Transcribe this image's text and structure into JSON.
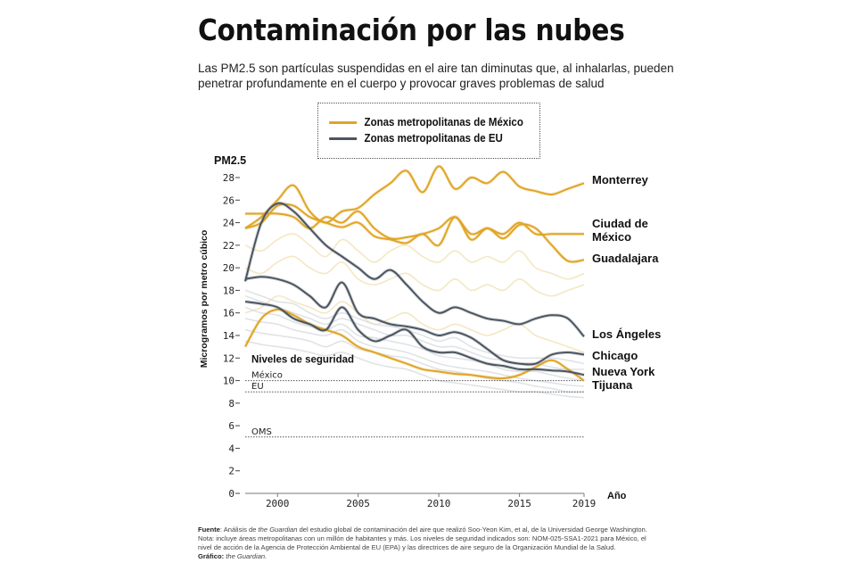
{
  "header": {
    "title": "Contaminación por las nubes",
    "subtitle": "Las PM2.5 son partículas suspendidas en el aire tan diminutas que, al inhalarlas, pueden penetrar profundamente en el cuerpo y provocar graves problemas de salud"
  },
  "colors": {
    "mexico": "#E0A526",
    "us": "#4B5560",
    "mexico_faint": "#F2DFB0",
    "us_faint": "#D5D9DE",
    "threshold": "#555555"
  },
  "chart_data": {
    "type": "line",
    "title": "Contaminación por las nubes",
    "ylabel": "Microgramos por metro cúbico",
    "ylabel_top": "PM2.5",
    "xlabel": "Año",
    "ylim": [
      0,
      28
    ],
    "xlim": [
      1998,
      2019
    ],
    "y_ticks": [
      0,
      2,
      4,
      6,
      8,
      10,
      12,
      14,
      16,
      18,
      20,
      22,
      24,
      26,
      28
    ],
    "x_ticks": [
      2000,
      2005,
      2010,
      2015,
      2019
    ],
    "grid": false,
    "legend": {
      "placement": "top-center",
      "entries": [
        {
          "label": "Zonas metropolitanas de México",
          "group": "mexico"
        },
        {
          "label": "Zonas metropolitanas de EU",
          "group": "us"
        }
      ]
    },
    "x": [
      1998,
      1999,
      2000,
      2001,
      2002,
      2003,
      2004,
      2005,
      2006,
      2007,
      2008,
      2009,
      2010,
      2011,
      2012,
      2013,
      2014,
      2015,
      2016,
      2017,
      2018,
      2019
    ],
    "series": [
      {
        "name": "Monterrey",
        "group": "mexico",
        "values": [
          23.5,
          24.5,
          26.0,
          27.3,
          25.0,
          24.0,
          25.0,
          25.3,
          26.5,
          27.5,
          28.6,
          26.7,
          29.0,
          27.0,
          28.0,
          27.5,
          28.5,
          27.2,
          26.8,
          26.5,
          27.0,
          27.5
        ]
      },
      {
        "name": "Ciudad de México",
        "group": "mexico",
        "values": [
          24.8,
          24.8,
          24.8,
          24.5,
          23.5,
          24.5,
          24.0,
          25.0,
          23.5,
          22.6,
          22.7,
          23.0,
          23.5,
          24.5,
          23.0,
          23.5,
          23.0,
          24.0,
          23.0,
          23.0,
          23.0,
          23.0
        ]
      },
      {
        "name": "Guadalajara",
        "group": "mexico",
        "values": [
          23.5,
          24.0,
          25.5,
          25.5,
          24.5,
          24.0,
          23.6,
          24.0,
          22.8,
          22.5,
          22.2,
          23.0,
          22.0,
          24.5,
          22.5,
          23.5,
          22.6,
          23.8,
          23.5,
          22.0,
          20.6,
          20.7
        ]
      },
      {
        "name": "Tijuana",
        "group": "mexico",
        "values": [
          13.0,
          15.5,
          16.3,
          15.8,
          15.0,
          14.5,
          14.0,
          13.0,
          12.5,
          12.0,
          11.5,
          11.0,
          10.8,
          10.6,
          10.5,
          10.3,
          10.2,
          10.5,
          11.2,
          11.8,
          11.0,
          10.0
        ]
      },
      {
        "name": "Los Ángeles",
        "group": "us",
        "values": [
          18.8,
          24.0,
          25.7,
          25.0,
          23.5,
          22.0,
          21.0,
          20.0,
          19.0,
          19.8,
          18.5,
          17.0,
          16.0,
          16.5,
          16.0,
          15.5,
          15.3,
          15.0,
          15.5,
          15.8,
          15.5,
          13.9
        ]
      },
      {
        "name": "Chicago",
        "group": "us",
        "values": [
          19.0,
          19.2,
          19.0,
          18.5,
          17.5,
          16.5,
          18.7,
          16.0,
          15.5,
          15.0,
          14.8,
          14.5,
          14.0,
          14.3,
          13.8,
          12.8,
          11.8,
          11.5,
          11.5,
          12.3,
          12.5,
          12.3
        ]
      },
      {
        "name": "Nueva York",
        "group": "us",
        "values": [
          17.0,
          16.8,
          16.5,
          15.5,
          15.0,
          14.5,
          16.5,
          14.5,
          13.5,
          14.0,
          14.5,
          13.0,
          12.5,
          12.5,
          12.0,
          11.5,
          11.3,
          11.0,
          11.0,
          10.9,
          10.8,
          10.5
        ]
      }
    ],
    "background_series_note": "Faint lines for other metropolitan areas",
    "background_series": [
      {
        "group": "mexico",
        "values": [
          22.0,
          21.5,
          22.5,
          23.0,
          22.0,
          21.0,
          22.5,
          21.5,
          20.5,
          21.5,
          22.0,
          21.0,
          20.5,
          21.5,
          20.5,
          21.0,
          20.5,
          21.5,
          20.0,
          19.5,
          19.0,
          19.5
        ]
      },
      {
        "group": "mexico",
        "values": [
          20.0,
          19.5,
          20.5,
          21.0,
          20.0,
          19.5,
          20.5,
          19.0,
          18.5,
          19.0,
          19.5,
          18.5,
          18.0,
          19.0,
          18.0,
          18.5,
          18.0,
          19.0,
          18.0,
          17.5,
          18.0,
          18.5
        ]
      },
      {
        "group": "mexico",
        "values": [
          16.0,
          16.5,
          17.5,
          17.0,
          16.5,
          16.0,
          17.0,
          16.0,
          15.0,
          15.5,
          16.0,
          15.0,
          14.5,
          15.0,
          14.5,
          14.0,
          14.5,
          15.0,
          14.0,
          13.5,
          13.0,
          12.5
        ]
      },
      {
        "group": "us",
        "values": [
          17.5,
          17.0,
          16.5,
          16.0,
          15.5,
          15.0,
          15.5,
          15.0,
          14.5,
          14.0,
          14.0,
          13.5,
          13.0,
          13.0,
          12.5,
          12.0,
          11.8,
          11.5,
          11.5,
          11.2,
          11.0,
          11.0
        ]
      },
      {
        "group": "us",
        "values": [
          16.5,
          16.0,
          15.8,
          15.2,
          14.8,
          14.5,
          15.0,
          14.0,
          13.8,
          13.5,
          13.2,
          12.8,
          12.2,
          12.0,
          11.8,
          11.5,
          11.0,
          10.8,
          10.8,
          10.5,
          10.2,
          10.0
        ]
      },
      {
        "group": "us",
        "values": [
          15.5,
          15.2,
          15.0,
          14.5,
          14.2,
          14.0,
          14.5,
          13.5,
          13.0,
          12.8,
          12.5,
          12.0,
          11.5,
          11.2,
          11.0,
          10.8,
          10.5,
          10.2,
          10.0,
          9.8,
          9.6,
          9.5
        ]
      },
      {
        "group": "us",
        "values": [
          14.5,
          14.2,
          14.0,
          13.8,
          13.5,
          13.0,
          13.5,
          12.8,
          12.5,
          12.2,
          12.0,
          11.5,
          11.0,
          10.8,
          10.5,
          10.2,
          10.0,
          9.8,
          9.5,
          9.3,
          9.0,
          9.0
        ]
      },
      {
        "group": "us",
        "values": [
          18.0,
          17.5,
          17.0,
          16.8,
          16.0,
          15.5,
          16.0,
          15.5,
          15.0,
          14.8,
          14.5,
          14.0,
          13.5,
          13.8,
          13.0,
          12.5,
          12.2,
          12.0,
          12.0,
          12.0,
          11.8,
          11.5
        ]
      },
      {
        "group": "us",
        "values": [
          13.5,
          13.2,
          13.0,
          12.8,
          12.5,
          12.2,
          12.5,
          12.0,
          11.5,
          11.2,
          11.0,
          10.5,
          10.0,
          9.8,
          9.6,
          9.4,
          9.2,
          9.0,
          9.0,
          8.8,
          8.6,
          8.5
        ]
      }
    ],
    "thresholds": {
      "heading": "Niveles de seguridad",
      "lines": [
        {
          "label": "México",
          "value": 10
        },
        {
          "label": "EU",
          "value": 9
        },
        {
          "label": "OMS",
          "value": 5
        }
      ]
    },
    "end_labels": [
      {
        "name": "Monterrey",
        "lines": [
          "Monterrey"
        ]
      },
      {
        "name": "Ciudad de México",
        "lines": [
          "Ciudad de",
          "México"
        ]
      },
      {
        "name": "Guadalajara",
        "lines": [
          "Guadalajara"
        ]
      },
      {
        "name": "Los Ángeles",
        "lines": [
          "Los Ángeles"
        ]
      },
      {
        "name": "Chicago",
        "lines": [
          "Chicago"
        ]
      },
      {
        "name": "Nueva York",
        "lines": [
          "Nueva York"
        ]
      },
      {
        "name": "Tijuana",
        "lines": [
          "Tijuana"
        ]
      }
    ]
  },
  "footer": {
    "source_label": "Fuente",
    "source_pre": ": Análisis de ",
    "source_italic": "the Guardian",
    "source_post": " del estudio global de contaminación del aire que realizó Soo-Yeon Kim, et al, de la Universidad George Washington.",
    "note": "Nota: incluye áreas metropolitanas con un millón de habitantes y más. Los niveles de seguridad indicados son: NOM-025-SSA1-2021 para México, el nivel de acción de la Agencia de Protección Ambiental de EU (EPA) y las directrices de aire seguro de la Organización Mundial de la Salud.",
    "graphic_label": "Gráfico:",
    "graphic_credit": "the Guardian."
  }
}
